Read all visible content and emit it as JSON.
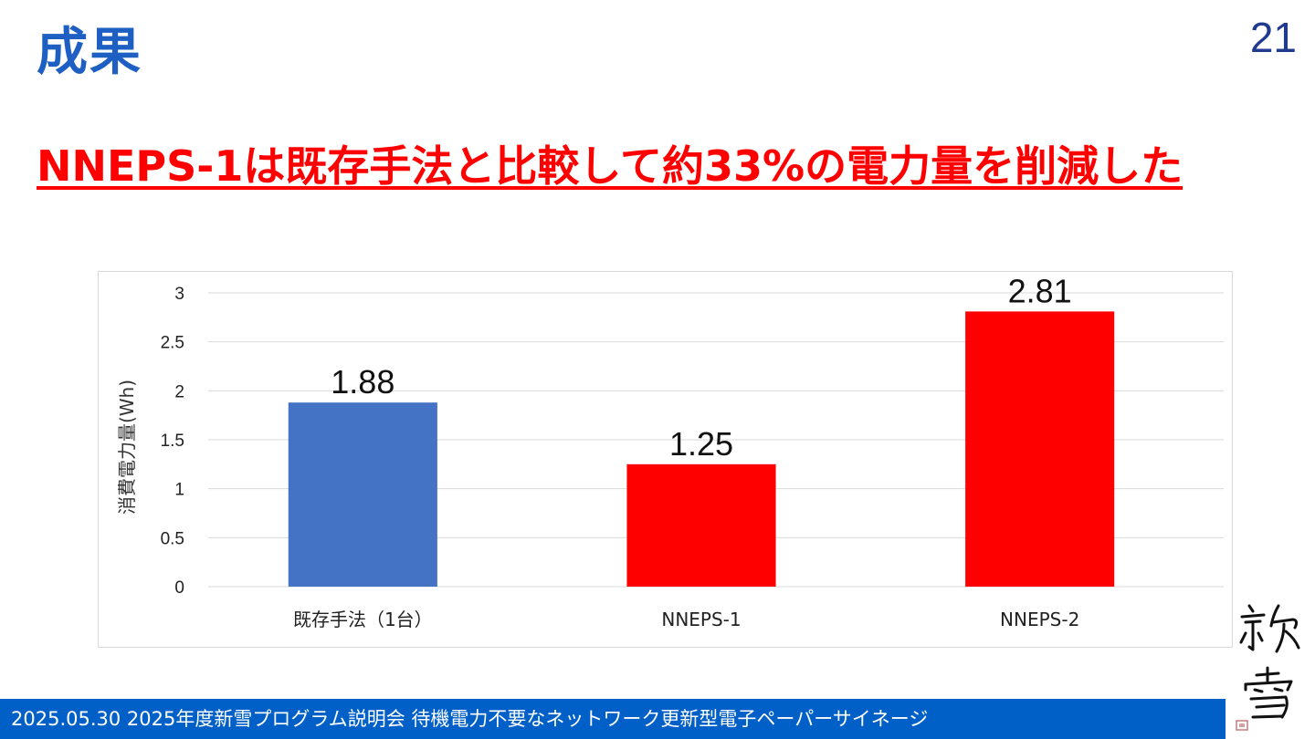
{
  "slide": {
    "title": "成果",
    "page_number": "21",
    "headline": "NNEPS-1は既存手法と比較して約33%の電力量を削減した"
  },
  "footer": {
    "text": "2025.05.30 2025年度新雪プログラム説明会 待機電力不要なネットワーク更新型電子ペーパーサイネージ"
  },
  "logo": {
    "text": "新雪"
  },
  "colors": {
    "title": "#1e5fc4",
    "headline": "#ff0000",
    "footer_bg": "#0060c8",
    "bar_existing": "#4472c4",
    "bar_nneps": "#ff0000"
  },
  "chart_data": {
    "type": "bar",
    "categories": [
      "既存手法（1台）",
      "NNEPS-1",
      "NNEPS-2"
    ],
    "values": [
      1.88,
      1.25,
      2.81
    ],
    "data_labels": [
      "1.88",
      "1.25",
      "2.81"
    ],
    "bar_colors": [
      "#4472c4",
      "#ff0000",
      "#ff0000"
    ],
    "title": "",
    "xlabel": "",
    "ylabel": "消費電力量(Wh)",
    "ylim": [
      0,
      3
    ],
    "yticks": [
      0,
      0.5,
      1,
      1.5,
      2,
      2.5,
      3
    ],
    "ytick_labels": [
      "0",
      "0.5",
      "1",
      "1.5",
      "2",
      "2.5",
      "3"
    ],
    "grid": true,
    "legend": "none"
  }
}
